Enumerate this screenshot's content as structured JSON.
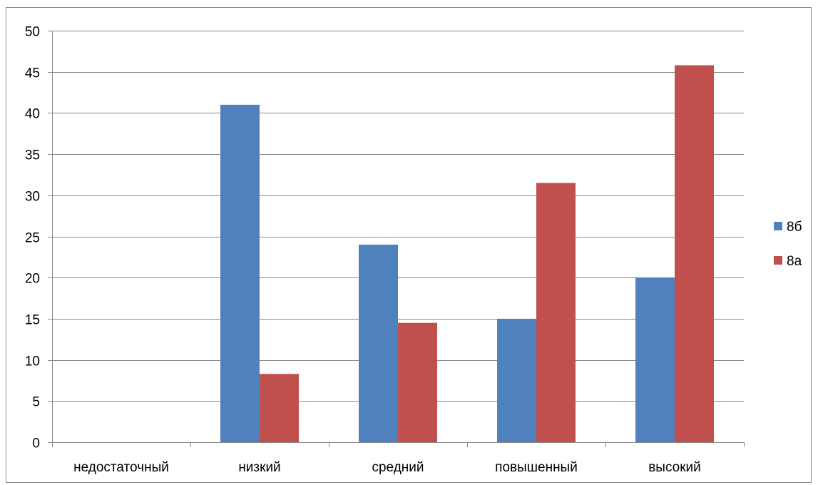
{
  "chart_data": {
    "type": "bar",
    "categories": [
      "недостаточный",
      "низкий",
      "средний",
      "повышенный",
      "высокий"
    ],
    "series": [
      {
        "name": "8б",
        "values": [
          0,
          41,
          24,
          15,
          20
        ],
        "color": "#4f81bd"
      },
      {
        "name": "8а",
        "values": [
          0,
          8.3,
          14.5,
          31.5,
          45.8
        ],
        "color": "#c0504d"
      }
    ],
    "ylim": [
      0,
      50
    ],
    "yticks": [
      0,
      5,
      10,
      15,
      20,
      25,
      30,
      35,
      40,
      45,
      50
    ],
    "grid": true,
    "legend": "right",
    "gridline_color": "#878787",
    "axis_color": "#878787"
  }
}
